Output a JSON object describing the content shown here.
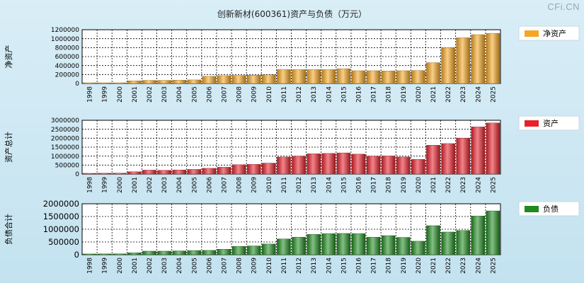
{
  "title": "创新新材(600361)资产与负债（万元）",
  "watermark": "CFi.CN",
  "chart_data": [
    {
      "type": "bar",
      "ylabel": "净资产",
      "legend": "净资产",
      "legend_position": "right",
      "color": "#f5a623",
      "ylim": [
        0,
        1200000
      ],
      "y_ticks": [
        "1200000",
        "1000000",
        "800000",
        "600000",
        "400000",
        "200000",
        "0"
      ],
      "categories": [
        "1998",
        "1999",
        "2000",
        "2001",
        "2002",
        "2003",
        "2004",
        "2005",
        "2006",
        "2007",
        "2008",
        "2009",
        "2010",
        "2011",
        "2012",
        "2013",
        "2014",
        "2015",
        "2016",
        "2017",
        "2018",
        "2019",
        "2020",
        "2021",
        "2022",
        "2023",
        "2024",
        "2025"
      ],
      "values": [
        10000,
        12000,
        15000,
        60000,
        70000,
        70000,
        75000,
        80000,
        160000,
        175000,
        180000,
        185000,
        195000,
        310000,
        310000,
        310000,
        310000,
        330000,
        285000,
        285000,
        280000,
        285000,
        290000,
        465000,
        800000,
        1020000,
        1090000,
        1120000
      ],
      "grid": true
    },
    {
      "type": "bar",
      "ylabel": "资产总计",
      "legend": "资产",
      "legend_position": "right",
      "color": "#e8202a",
      "ylim": [
        0,
        3000000
      ],
      "y_ticks": [
        "3000000",
        "2500000",
        "2000000",
        "1500000",
        "1000000",
        "500000",
        "0"
      ],
      "categories": [
        "1998",
        "1999",
        "2000",
        "2001",
        "2002",
        "2003",
        "2004",
        "2005",
        "2006",
        "2007",
        "2008",
        "2009",
        "2010",
        "2011",
        "2012",
        "2013",
        "2014",
        "2015",
        "2016",
        "2017",
        "2018",
        "2019",
        "2020",
        "2021",
        "2022",
        "2023",
        "2024",
        "2025"
      ],
      "values": [
        40000,
        45000,
        50000,
        130000,
        220000,
        210000,
        230000,
        260000,
        320000,
        380000,
        520000,
        540000,
        610000,
        950000,
        1000000,
        1130000,
        1150000,
        1180000,
        1110000,
        1000000,
        1010000,
        950000,
        820000,
        1610000,
        1700000,
        2000000,
        2630000,
        2850000
      ],
      "grid": true
    },
    {
      "type": "bar",
      "ylabel": "负债合计",
      "legend": "负债",
      "legend_position": "right",
      "color": "#1f8a1f",
      "ylim": [
        0,
        2000000
      ],
      "y_ticks": [
        "2000000",
        "1500000",
        "1000000",
        "500000",
        "0"
      ],
      "categories": [
        "1998",
        "1999",
        "2000",
        "2001",
        "2002",
        "2003",
        "2004",
        "2005",
        "2006",
        "2007",
        "2008",
        "2009",
        "2010",
        "2011",
        "2012",
        "2013",
        "2014",
        "2015",
        "2016",
        "2017",
        "2018",
        "2019",
        "2020",
        "2021",
        "2022",
        "2023",
        "2024",
        "2025"
      ],
      "values": [
        30000,
        32000,
        35000,
        75000,
        140000,
        140000,
        150000,
        165000,
        170000,
        215000,
        330000,
        345000,
        420000,
        620000,
        690000,
        800000,
        830000,
        835000,
        830000,
        690000,
        750000,
        680000,
        530000,
        1140000,
        890000,
        950000,
        1520000,
        1720000
      ],
      "grid": true
    }
  ]
}
